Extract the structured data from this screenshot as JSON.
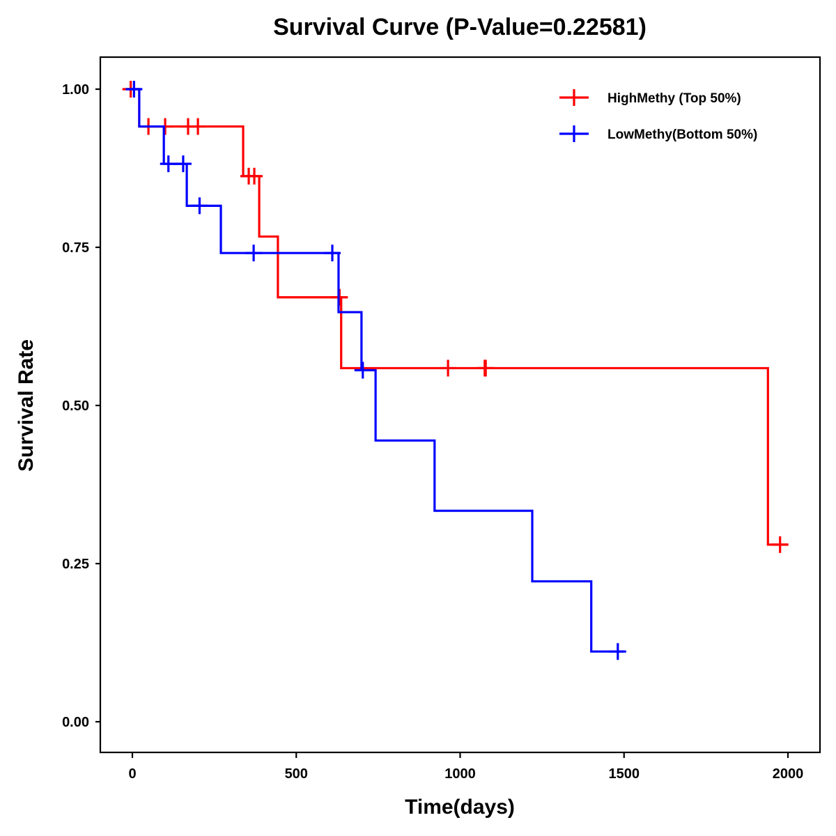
{
  "chart_data": {
    "type": "line",
    "subtype": "kaplan-meier-step",
    "title": "Survival Curve (P-Value=0.22581)",
    "xlabel": "Time(days)",
    "ylabel": "Survival Rate",
    "xlim": [
      -95,
      2090
    ],
    "ylim": [
      -0.05,
      1.05
    ],
    "xticks": [
      0,
      500,
      1000,
      1500,
      2000
    ],
    "xtick_labels": [
      "0",
      "500",
      "1000",
      "1500",
      "2000"
    ],
    "yticks": [
      0,
      0.25,
      0.5,
      0.75,
      1.0
    ],
    "ytick_labels": [
      "0.00",
      "0.25",
      "0.50",
      "0.75",
      "1.00"
    ],
    "grid": false,
    "legend_position": "top-right",
    "series": [
      {
        "name": "HighMethy (Top 50%)",
        "color": "#ff0000",
        "steps": [
          {
            "t": -20,
            "s": 1.0
          },
          {
            "t": 21,
            "s": 0.941
          },
          {
            "t": 338,
            "s": 0.8625
          },
          {
            "t": 387,
            "s": 0.767
          },
          {
            "t": 444,
            "s": 0.671
          },
          {
            "t": 637,
            "s": 0.559
          },
          {
            "t": 1939,
            "s": 0.28
          }
        ],
        "end_t": 2000,
        "censored": [
          {
            "t": -5,
            "s": 1.0
          },
          {
            "t": 49,
            "s": 0.941
          },
          {
            "t": 100,
            "s": 0.941
          },
          {
            "t": 170,
            "s": 0.941
          },
          {
            "t": 200,
            "s": 0.941
          },
          {
            "t": 355,
            "s": 0.8625
          },
          {
            "t": 372,
            "s": 0.8625
          },
          {
            "t": 632,
            "s": 0.671
          },
          {
            "t": 963,
            "s": 0.559
          },
          {
            "t": 1075,
            "s": 0.559
          },
          {
            "t": 1078,
            "s": 0.559
          },
          {
            "t": 1976,
            "s": 0.28
          }
        ]
      },
      {
        "name": "LowMethy(Bottom 50%)",
        "color": "#0000ff",
        "steps": [
          {
            "t": -10,
            "s": 1.0
          },
          {
            "t": 21,
            "s": 0.941
          },
          {
            "t": 96,
            "s": 0.882
          },
          {
            "t": 166,
            "s": 0.8157
          },
          {
            "t": 270,
            "s": 0.741
          },
          {
            "t": 629,
            "s": 0.6475
          },
          {
            "t": 699,
            "s": 0.5557
          },
          {
            "t": 742,
            "s": 0.4446
          },
          {
            "t": 922,
            "s": 0.3335
          },
          {
            "t": 1220,
            "s": 0.222
          },
          {
            "t": 1400,
            "s": 0.111
          }
        ],
        "end_t": 1500,
        "censored": [
          {
            "t": 5,
            "s": 1.0
          },
          {
            "t": 110,
            "s": 0.882
          },
          {
            "t": 155,
            "s": 0.882
          },
          {
            "t": 205,
            "s": 0.8157
          },
          {
            "t": 370,
            "s": 0.741
          },
          {
            "t": 610,
            "s": 0.741
          },
          {
            "t": 703,
            "s": 0.5557
          },
          {
            "t": 1481,
            "s": 0.111
          }
        ]
      }
    ]
  }
}
